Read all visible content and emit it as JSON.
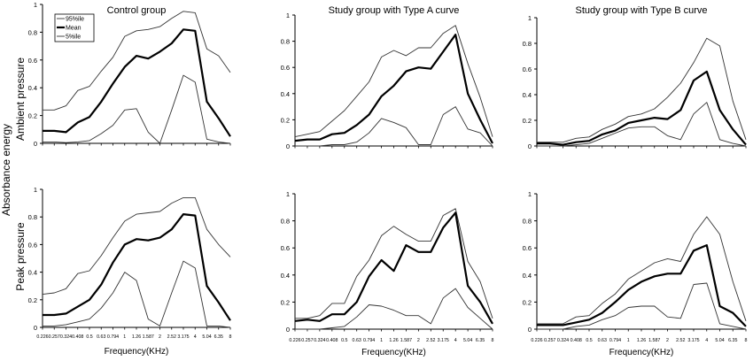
{
  "figure": {
    "ylabel": "Absorbance energy",
    "row_labels": [
      "Ambient pressure",
      "Peak pressure"
    ],
    "col_titles": [
      "Control group",
      "Study group with Type A curve",
      "Study group with Type B curve"
    ],
    "xlabel": "Frequency(KHz)",
    "legend": [
      "95%ile",
      "Mean",
      "5%ile"
    ]
  },
  "chart_data": [
    {
      "type": "line",
      "title": "Control group",
      "row": "Ambient pressure",
      "ylim": [
        0,
        1
      ],
      "yticks": [
        0,
        0.2,
        0.4,
        0.6,
        0.8,
        1
      ],
      "categories": [
        "0.226",
        "0.257",
        "0.324",
        "0.408",
        "0.5",
        "0.63",
        "0.794",
        "1",
        "1.26",
        "1.587",
        "2",
        "2.52",
        "3.175",
        "4",
        "5.04",
        "6.35",
        "8"
      ],
      "series": [
        {
          "name": "95%ile",
          "values": [
            0.24,
            0.24,
            0.27,
            0.38,
            0.41,
            0.52,
            0.62,
            0.77,
            0.81,
            0.82,
            0.84,
            0.9,
            0.95,
            0.94,
            0.68,
            0.63,
            0.51
          ]
        },
        {
          "name": "Mean",
          "values": [
            0.09,
            0.09,
            0.08,
            0.15,
            0.19,
            0.3,
            0.43,
            0.55,
            0.63,
            0.61,
            0.66,
            0.72,
            0.82,
            0.81,
            0.3,
            0.18,
            0.05
          ]
        },
        {
          "name": "5%ile",
          "values": [
            0.01,
            0.01,
            0.005,
            0.01,
            0.02,
            0.07,
            0.13,
            0.24,
            0.25,
            0.08,
            0.0,
            0.24,
            0.49,
            0.44,
            0.03,
            0.01,
            0.0
          ]
        }
      ]
    },
    {
      "type": "line",
      "title": "Study group with Type A curve",
      "row": "Ambient pressure",
      "ylim": [
        0,
        1
      ],
      "yticks": [
        0,
        0.2,
        0.4,
        0.6,
        0.8,
        1
      ],
      "categories": [
        "0.226",
        "0.257",
        "0.324",
        "0.408",
        "0.5",
        "0.63",
        "0.794",
        "1",
        "1.26",
        "1.587",
        "2",
        "2.52",
        "3.175",
        "4",
        "5.04",
        "6.35",
        "8"
      ],
      "series": [
        {
          "name": "95%ile",
          "values": [
            0.07,
            0.09,
            0.11,
            0.19,
            0.27,
            0.38,
            0.49,
            0.68,
            0.73,
            0.69,
            0.75,
            0.75,
            0.86,
            0.92,
            0.63,
            0.37,
            0.07
          ]
        },
        {
          "name": "Mean",
          "values": [
            0.04,
            0.05,
            0.05,
            0.09,
            0.1,
            0.16,
            0.24,
            0.38,
            0.46,
            0.57,
            0.6,
            0.59,
            0.72,
            0.85,
            0.4,
            0.2,
            0.02
          ]
        },
        {
          "name": "5%ile",
          "values": [
            0.0,
            0.0,
            0.0,
            0.01,
            0.01,
            0.03,
            0.1,
            0.21,
            0.18,
            0.14,
            0.01,
            0.01,
            0.24,
            0.3,
            0.13,
            0.1,
            0.0
          ]
        }
      ]
    },
    {
      "type": "line",
      "title": "Study group with Type B curve",
      "row": "Ambient pressure",
      "ylim": [
        0,
        1
      ],
      "yticks": [
        0,
        0.2,
        0.4,
        0.6,
        0.8,
        1
      ],
      "categories": [
        "0.226",
        "0.257",
        "0.324",
        "0.408",
        "0.5",
        "0.63",
        "0.794",
        "1",
        "1.26",
        "1.587",
        "2",
        "2.52",
        "3.175",
        "4",
        "5.04",
        "6.35",
        "8"
      ],
      "series": [
        {
          "name": "95%ile",
          "values": [
            0.03,
            0.03,
            0.03,
            0.06,
            0.07,
            0.13,
            0.17,
            0.23,
            0.25,
            0.29,
            0.38,
            0.49,
            0.65,
            0.84,
            0.78,
            0.35,
            0.05
          ]
        },
        {
          "name": "Mean",
          "values": [
            0.02,
            0.02,
            0.01,
            0.03,
            0.04,
            0.09,
            0.12,
            0.18,
            0.2,
            0.22,
            0.21,
            0.28,
            0.51,
            0.58,
            0.28,
            0.13,
            0.01
          ]
        },
        {
          "name": "5%ile",
          "values": [
            0.0,
            0.0,
            0.0,
            0.01,
            0.02,
            0.06,
            0.1,
            0.14,
            0.15,
            0.15,
            0.08,
            0.05,
            0.25,
            0.34,
            0.05,
            0.02,
            0.0
          ]
        }
      ]
    },
    {
      "type": "line",
      "title": "Control group",
      "row": "Peak pressure",
      "ylim": [
        0,
        1
      ],
      "yticks": [
        0,
        0.2,
        0.4,
        0.6,
        0.8,
        1
      ],
      "categories": [
        "0.226",
        "0.257",
        "0.324",
        "0.408",
        "0.5",
        "0.63",
        "0.794",
        "1",
        "1.26",
        "1.587",
        "2",
        "2.52",
        "3.175",
        "4",
        "5.04",
        "6.35",
        "8"
      ],
      "series": [
        {
          "name": "95%ile",
          "values": [
            0.24,
            0.25,
            0.28,
            0.39,
            0.41,
            0.52,
            0.65,
            0.77,
            0.82,
            0.83,
            0.84,
            0.9,
            0.94,
            0.94,
            0.71,
            0.6,
            0.51
          ]
        },
        {
          "name": "Mean",
          "values": [
            0.09,
            0.09,
            0.1,
            0.15,
            0.2,
            0.31,
            0.47,
            0.6,
            0.64,
            0.63,
            0.65,
            0.71,
            0.82,
            0.81,
            0.3,
            0.18,
            0.05
          ]
        },
        {
          "name": "5%ile",
          "values": [
            0.01,
            0.01,
            0.02,
            0.04,
            0.06,
            0.14,
            0.25,
            0.4,
            0.34,
            0.06,
            0.01,
            0.25,
            0.48,
            0.43,
            0.01,
            0.01,
            0.0
          ]
        }
      ]
    },
    {
      "type": "line",
      "title": "Study group with Type A curve",
      "row": "Peak pressure",
      "ylim": [
        0,
        1
      ],
      "yticks": [
        0,
        0.2,
        0.4,
        0.6,
        0.8,
        1
      ],
      "categories": [
        "0.226",
        "0.257",
        "0.324",
        "0.408",
        "0.5",
        "0.63",
        "0.794",
        "1",
        "1.26",
        "1.587",
        "2",
        "2.52",
        "3.175",
        "4",
        "5.04",
        "6.35",
        "8"
      ],
      "series": [
        {
          "name": "95%ile",
          "values": [
            0.08,
            0.08,
            0.1,
            0.19,
            0.19,
            0.39,
            0.51,
            0.69,
            0.76,
            0.7,
            0.65,
            0.65,
            0.84,
            0.89,
            0.5,
            0.35,
            0.08
          ]
        },
        {
          "name": "Mean",
          "values": [
            0.06,
            0.07,
            0.06,
            0.11,
            0.11,
            0.2,
            0.39,
            0.51,
            0.43,
            0.62,
            0.57,
            0.57,
            0.75,
            0.86,
            0.32,
            0.2,
            0.04
          ]
        },
        {
          "name": "5%ile",
          "values": [
            0.0,
            0.0,
            0.0,
            0.01,
            0.02,
            0.09,
            0.18,
            0.17,
            0.14,
            0.1,
            0.1,
            0.04,
            0.23,
            0.3,
            0.16,
            0.08,
            0.0
          ]
        }
      ]
    },
    {
      "type": "line",
      "title": "Study group with Type B curve",
      "row": "Peak pressure",
      "ylim": [
        0,
        1
      ],
      "yticks": [
        0,
        0.2,
        0.4,
        0.6,
        0.8,
        1
      ],
      "categories": [
        "0.226",
        "0.257",
        "0.324",
        "0.408",
        "0.5",
        "0.63",
        "0.794",
        "1",
        "1.26",
        "1.587",
        "2",
        "2.52",
        "3.175",
        "4",
        "5.04",
        "6.35",
        "8"
      ],
      "series": [
        {
          "name": "95%ile",
          "values": [
            0.04,
            0.04,
            0.04,
            0.09,
            0.1,
            0.19,
            0.26,
            0.37,
            0.43,
            0.49,
            0.52,
            0.5,
            0.7,
            0.83,
            0.7,
            0.35,
            0.06
          ]
        },
        {
          "name": "Mean",
          "values": [
            0.03,
            0.03,
            0.03,
            0.05,
            0.07,
            0.12,
            0.2,
            0.29,
            0.35,
            0.39,
            0.41,
            0.41,
            0.58,
            0.62,
            0.17,
            0.12,
            0.02
          ]
        },
        {
          "name": "5%ile",
          "values": [
            0.0,
            0.0,
            0.0,
            0.02,
            0.03,
            0.07,
            0.1,
            0.16,
            0.17,
            0.17,
            0.09,
            0.08,
            0.33,
            0.34,
            0.04,
            0.02,
            0.0
          ]
        }
      ]
    }
  ]
}
